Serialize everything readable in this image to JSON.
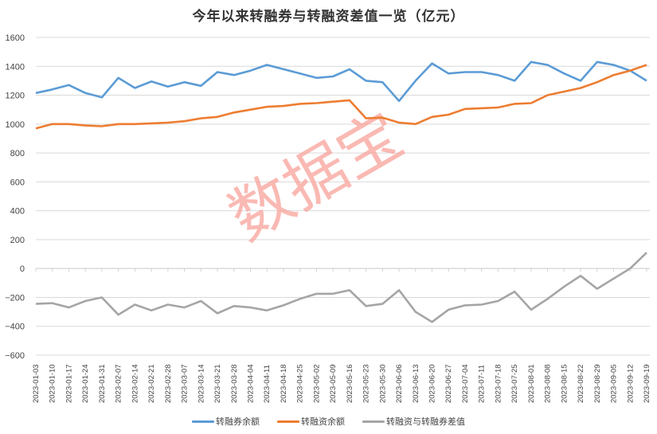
{
  "title": "今年以来转融券与转融资差值一览（亿元）",
  "watermark": "数据宝",
  "legend": [
    {
      "label": "转融券余额",
      "color": "#5b9bd5"
    },
    {
      "label": "转融资余额",
      "color": "#ed7d31"
    },
    {
      "label": "转融资与转融券差值",
      "color": "#a5a5a5"
    }
  ],
  "chart_data": {
    "type": "line",
    "title": "今年以来转融券与转融资差值一览（亿元）",
    "xlabel": "",
    "ylabel": "",
    "ylim": [
      -600,
      1600
    ],
    "yticks": [
      1600,
      1400,
      1200,
      1000,
      800,
      600,
      400,
      200,
      0,
      -200,
      -400,
      -600
    ],
    "grid": true,
    "legend_position": "bottom",
    "x_tick_labels": [
      "2023-01-03",
      "2023-01-10",
      "2023-01-17",
      "2023-01-24",
      "2023-01-31",
      "2023-02-07",
      "2023-02-14",
      "2023-02-21",
      "2023-02-28",
      "2023-03-07",
      "2023-03-14",
      "2023-03-21",
      "2023-03-28",
      "2023-04-04",
      "2023-04-11",
      "2023-04-18",
      "2023-04-25",
      "2023-05-02",
      "2023-05-09",
      "2023-05-16",
      "2023-05-23",
      "2023-05-30",
      "2023-06-06",
      "2023-06-13",
      "2023-06-20",
      "2023-06-27",
      "2023-07-04",
      "2023-07-11",
      "2023-07-18",
      "2023-07-25",
      "2023-08-01",
      "2023-08-08",
      "2023-08-15",
      "2023-08-22",
      "2023-08-29",
      "2023-09-05",
      "2023-09-12",
      "2023-09-19"
    ],
    "categories": [
      "2023-01-03",
      "2023-01-10",
      "2023-01-17",
      "2023-01-24",
      "2023-01-31",
      "2023-02-07",
      "2023-02-14",
      "2023-02-21",
      "2023-02-28",
      "2023-03-07",
      "2023-03-14",
      "2023-03-21",
      "2023-03-28",
      "2023-04-04",
      "2023-04-11",
      "2023-04-18",
      "2023-04-25",
      "2023-05-02",
      "2023-05-09",
      "2023-05-16",
      "2023-05-23",
      "2023-05-30",
      "2023-06-06",
      "2023-06-13",
      "2023-06-20",
      "2023-06-27",
      "2023-07-04",
      "2023-07-11",
      "2023-07-18",
      "2023-07-25",
      "2023-08-01",
      "2023-08-08",
      "2023-08-15",
      "2023-08-22",
      "2023-08-29",
      "2023-09-05",
      "2023-09-12",
      "2023-09-19"
    ],
    "series": [
      {
        "name": "转融券余额",
        "color": "#5b9bd5",
        "values": [
          1215,
          1240,
          1270,
          1215,
          1185,
          1320,
          1250,
          1295,
          1260,
          1290,
          1265,
          1360,
          1340,
          1370,
          1410,
          1380,
          1350,
          1320,
          1330,
          1380,
          1300,
          1290,
          1160,
          1300,
          1420,
          1350,
          1360,
          1360,
          1340,
          1300,
          1430,
          1410,
          1350,
          1300,
          1430,
          1410,
          1370,
          1300
        ]
      },
      {
        "name": "转融资余额",
        "color": "#ed7d31",
        "values": [
          970,
          1000,
          1000,
          990,
          985,
          1000,
          1000,
          1005,
          1010,
          1020,
          1040,
          1050,
          1080,
          1100,
          1120,
          1125,
          1140,
          1145,
          1155,
          1165,
          1040,
          1045,
          1010,
          1000,
          1050,
          1065,
          1105,
          1110,
          1115,
          1140,
          1145,
          1200,
          1225,
          1250,
          1290,
          1340,
          1370,
          1410
        ]
      },
      {
        "name": "转融资与转融券差值",
        "color": "#a5a5a5",
        "values": [
          -245,
          -240,
          -270,
          -225,
          -200,
          -320,
          -250,
          -290,
          -250,
          -270,
          -225,
          -310,
          -260,
          -270,
          -290,
          -255,
          -210,
          -175,
          -175,
          -150,
          -260,
          -245,
          -150,
          -300,
          -370,
          -285,
          -255,
          -250,
          -225,
          -160,
          -285,
          -210,
          -125,
          -50,
          -140,
          -70,
          0,
          110
        ]
      }
    ]
  }
}
